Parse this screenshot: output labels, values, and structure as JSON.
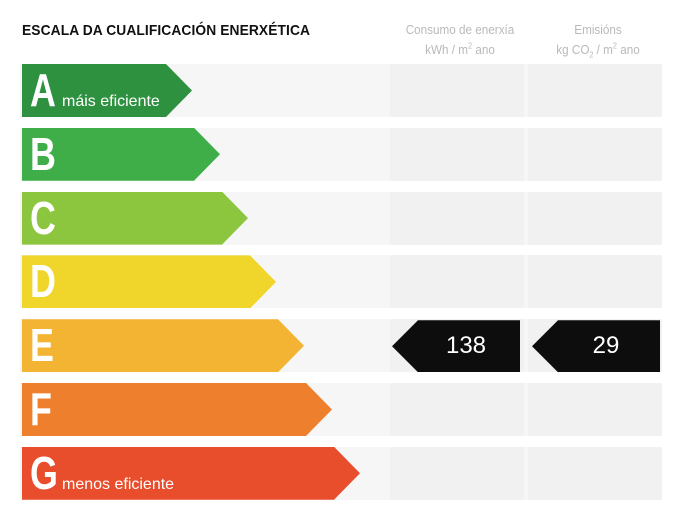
{
  "title": "ESCALA DA CUALIFICACIÓN ENERXÉTICA",
  "columns": {
    "consumption": {
      "line1": "Consumo de enerxía",
      "line2_prefix": "kWh / m",
      "line2_sup": "2",
      "line2_suffix": " ano"
    },
    "emissions": {
      "line1": "Emisións",
      "line2_prefix": "kg CO",
      "line2_sub": "2",
      "line2_mid": " / m",
      "line2_sup": "2",
      "line2_suffix": " ano"
    }
  },
  "ratings": [
    {
      "letter": "A",
      "label": "máis eficiente",
      "color": "#2e9140"
    },
    {
      "letter": "B",
      "label": "",
      "color": "#3fae49"
    },
    {
      "letter": "C",
      "label": "",
      "color": "#8cc63f"
    },
    {
      "letter": "D",
      "label": "",
      "color": "#f0d52b"
    },
    {
      "letter": "E",
      "label": "",
      "color": "#f3b434"
    },
    {
      "letter": "F",
      "label": "",
      "color": "#ee7f2d"
    },
    {
      "letter": "G",
      "label": "menos eficiente",
      "color": "#e84e2c"
    }
  ],
  "current": {
    "rating": "E",
    "consumption_value": "138",
    "emissions_value": "29"
  },
  "marker_color": "#0d0d0d"
}
